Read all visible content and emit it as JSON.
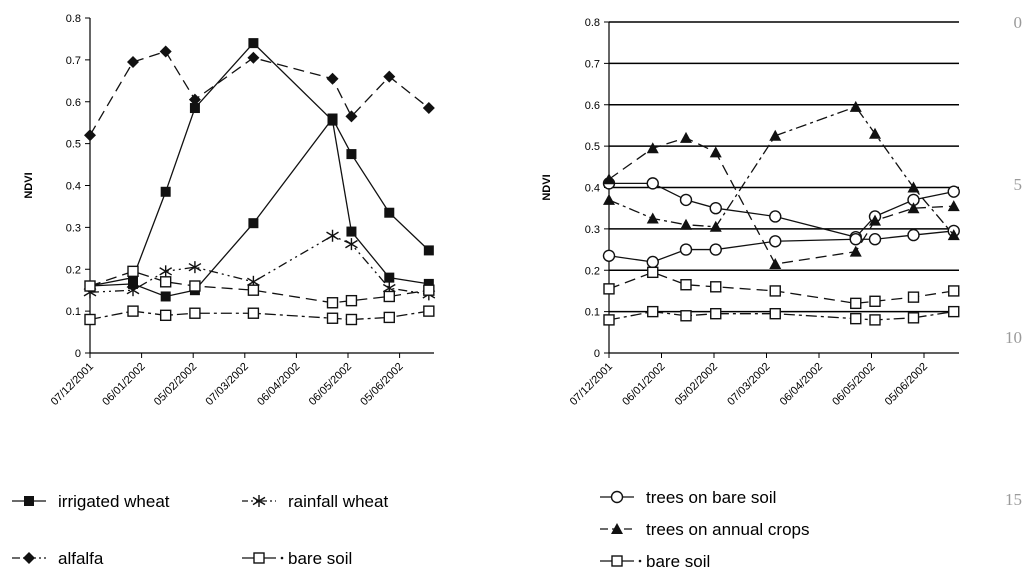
{
  "chart_data": [
    {
      "type": "line",
      "ylabel": "NDVI",
      "ylim": [
        0,
        0.8
      ],
      "yticks": [
        "0",
        "0.1",
        "0.2",
        "0.3",
        "0.4",
        "0.5",
        "0.6",
        "0.7",
        "0.8"
      ],
      "xlim": [
        "2001-12-07",
        "2002-06-25"
      ],
      "xticks": [
        "07/12/2001",
        "06/01/2002",
        "05/02/2002",
        "07/03/2002",
        "06/04/2002",
        "06/05/2002",
        "05/06/2002"
      ],
      "grid": false,
      "legend_placement": "bottom",
      "series": [
        {
          "name": "irrigated wheat",
          "marker": "filled-square",
          "dash": "solid",
          "points": [
            {
              "x": "2001-12-07",
              "y": 0.16
            },
            {
              "x": "2002-01-01",
              "y": 0.18
            },
            {
              "x": "2002-01-20",
              "y": 0.385
            },
            {
              "x": "2002-02-06",
              "y": 0.585
            },
            {
              "x": "2002-03-12",
              "y": 0.74
            },
            {
              "x": "2002-04-27",
              "y": 0.555
            },
            {
              "x": "2002-05-08",
              "y": 0.29
            },
            {
              "x": "2002-05-30",
              "y": 0.18
            },
            {
              "x": "2002-06-22",
              "y": 0.165
            }
          ]
        },
        {
          "name": "irrigated wheat",
          "marker": "filled-square",
          "dash": "solid",
          "points": [
            {
              "x": "2001-12-07",
              "y": 0.16
            },
            {
              "x": "2002-01-01",
              "y": 0.165
            },
            {
              "x": "2002-01-20",
              "y": 0.135
            },
            {
              "x": "2002-02-06",
              "y": 0.15
            },
            {
              "x": "2002-03-12",
              "y": 0.31
            },
            {
              "x": "2002-04-27",
              "y": 0.56
            },
            {
              "x": "2002-05-08",
              "y": 0.475
            },
            {
              "x": "2002-05-30",
              "y": 0.335
            },
            {
              "x": "2002-06-22",
              "y": 0.245
            }
          ]
        },
        {
          "name": "rainfall wheat",
          "marker": "asterisk",
          "dash": "dash-dot-dot",
          "points": [
            {
              "x": "2001-12-07",
              "y": 0.145
            },
            {
              "x": "2002-01-01",
              "y": 0.15
            },
            {
              "x": "2002-01-20",
              "y": 0.195
            },
            {
              "x": "2002-02-06",
              "y": 0.205
            },
            {
              "x": "2002-03-12",
              "y": 0.17
            },
            {
              "x": "2002-04-27",
              "y": 0.28
            },
            {
              "x": "2002-05-08",
              "y": 0.26
            },
            {
              "x": "2002-05-30",
              "y": 0.155
            },
            {
              "x": "2002-06-22",
              "y": 0.14
            }
          ]
        },
        {
          "name": "alfalfa",
          "marker": "filled-diamond",
          "dash": "long-dash",
          "points": [
            {
              "x": "2001-12-07",
              "y": 0.52
            },
            {
              "x": "2002-01-01",
              "y": 0.695
            },
            {
              "x": "2002-01-20",
              "y": 0.72
            },
            {
              "x": "2002-02-06",
              "y": 0.605
            },
            {
              "x": "2002-03-12",
              "y": 0.705
            },
            {
              "x": "2002-04-27",
              "y": 0.655
            },
            {
              "x": "2002-05-08",
              "y": 0.565
            },
            {
              "x": "2002-05-30",
              "y": 0.66
            },
            {
              "x": "2002-06-22",
              "y": 0.585
            }
          ]
        },
        {
          "name": "bare soil",
          "marker": "open-square",
          "dash": "dash-dot",
          "points": [
            {
              "x": "2001-12-07",
              "y": 0.08
            },
            {
              "x": "2002-01-01",
              "y": 0.1
            },
            {
              "x": "2002-01-20",
              "y": 0.09
            },
            {
              "x": "2002-02-06",
              "y": 0.095
            },
            {
              "x": "2002-03-12",
              "y": 0.095
            },
            {
              "x": "2002-04-27",
              "y": 0.083
            },
            {
              "x": "2002-05-08",
              "y": 0.08
            },
            {
              "x": "2002-05-30",
              "y": 0.085
            },
            {
              "x": "2002-06-22",
              "y": 0.1
            }
          ]
        },
        {
          "name": "bare soil",
          "marker": "open-square",
          "dash": "long-dash",
          "points": [
            {
              "x": "2001-12-07",
              "y": 0.16
            },
            {
              "x": "2002-01-01",
              "y": 0.195
            },
            {
              "x": "2002-01-20",
              "y": 0.17
            },
            {
              "x": "2002-02-06",
              "y": 0.16
            },
            {
              "x": "2002-03-12",
              "y": 0.15
            },
            {
              "x": "2002-04-27",
              "y": 0.12
            },
            {
              "x": "2002-05-08",
              "y": 0.125
            },
            {
              "x": "2002-05-30",
              "y": 0.135
            },
            {
              "x": "2002-06-22",
              "y": 0.15
            }
          ]
        }
      ],
      "legend": [
        {
          "label": "irrigated wheat",
          "marker": "filled-square",
          "dash": "solid",
          "col": 0,
          "row": 0
        },
        {
          "label": "rainfall wheat",
          "marker": "asterisk",
          "dash": "dash-dot-dot",
          "col": 1,
          "row": 0
        },
        {
          "label": "alfalfa",
          "marker": "filled-diamond",
          "dash": "dash-dot",
          "col": 0,
          "row": 1
        },
        {
          "label": "bare soil",
          "marker": "open-square",
          "dash": "solid-dot",
          "col": 1,
          "row": 1
        }
      ]
    },
    {
      "type": "line",
      "ylabel": "NDVI",
      "ylim": [
        0,
        0.8
      ],
      "yticks": [
        "0",
        "0.1",
        "0.2",
        "0.3",
        "0.4",
        "0.5",
        "0.6",
        "0.7",
        "0.8"
      ],
      "xlim": [
        "2001-12-07",
        "2002-06-25"
      ],
      "xticks": [
        "07/12/2001",
        "06/01/2002",
        "05/02/2002",
        "07/03/2002",
        "06/04/2002",
        "06/05/2002",
        "05/06/2002"
      ],
      "grid": true,
      "legend_placement": "bottom",
      "series": [
        {
          "name": "trees on bare soil",
          "marker": "open-circle",
          "dash": "solid",
          "points": [
            {
              "x": "2001-12-07",
              "y": 0.41
            },
            {
              "x": "2002-01-01",
              "y": 0.41
            },
            {
              "x": "2002-01-20",
              "y": 0.37
            },
            {
              "x": "2002-02-06",
              "y": 0.35
            },
            {
              "x": "2002-03-12",
              "y": 0.33
            },
            {
              "x": "2002-04-27",
              "y": 0.28
            },
            {
              "x": "2002-05-08",
              "y": 0.33
            },
            {
              "x": "2002-05-30",
              "y": 0.37
            },
            {
              "x": "2002-06-22",
              "y": 0.39
            }
          ]
        },
        {
          "name": "trees on bare soil",
          "marker": "open-circle",
          "dash": "solid",
          "points": [
            {
              "x": "2001-12-07",
              "y": 0.235
            },
            {
              "x": "2002-01-01",
              "y": 0.22
            },
            {
              "x": "2002-01-20",
              "y": 0.25
            },
            {
              "x": "2002-02-06",
              "y": 0.25
            },
            {
              "x": "2002-03-12",
              "y": 0.27
            },
            {
              "x": "2002-04-27",
              "y": 0.275
            },
            {
              "x": "2002-05-08",
              "y": 0.275
            },
            {
              "x": "2002-05-30",
              "y": 0.285
            },
            {
              "x": "2002-06-22",
              "y": 0.295
            }
          ]
        },
        {
          "name": "trees on annual crops",
          "marker": "filled-triangle",
          "dash": "long-dash",
          "points": [
            {
              "x": "2001-12-07",
              "y": 0.42
            },
            {
              "x": "2002-01-01",
              "y": 0.495
            },
            {
              "x": "2002-01-20",
              "y": 0.52
            },
            {
              "x": "2002-02-06",
              "y": 0.485
            },
            {
              "x": "2002-03-12",
              "y": 0.215
            },
            {
              "x": "2002-04-27",
              "y": 0.245
            },
            {
              "x": "2002-05-08",
              "y": 0.32
            },
            {
              "x": "2002-05-30",
              "y": 0.35
            },
            {
              "x": "2002-06-22",
              "y": 0.355
            }
          ]
        },
        {
          "name": "trees on annual crops",
          "marker": "filled-triangle",
          "dash": "dash-dot",
          "points": [
            {
              "x": "2001-12-07",
              "y": 0.37
            },
            {
              "x": "2002-01-01",
              "y": 0.325
            },
            {
              "x": "2002-01-20",
              "y": 0.31
            },
            {
              "x": "2002-02-06",
              "y": 0.305
            },
            {
              "x": "2002-03-12",
              "y": 0.525
            },
            {
              "x": "2002-04-27",
              "y": 0.595
            },
            {
              "x": "2002-05-08",
              "y": 0.53
            },
            {
              "x": "2002-05-30",
              "y": 0.4
            },
            {
              "x": "2002-06-22",
              "y": 0.285
            }
          ]
        },
        {
          "name": "bare soil",
          "marker": "open-square",
          "dash": "dash-dot",
          "points": [
            {
              "x": "2001-12-07",
              "y": 0.08
            },
            {
              "x": "2002-01-01",
              "y": 0.1
            },
            {
              "x": "2002-01-20",
              "y": 0.09
            },
            {
              "x": "2002-02-06",
              "y": 0.095
            },
            {
              "x": "2002-03-12",
              "y": 0.095
            },
            {
              "x": "2002-04-27",
              "y": 0.083
            },
            {
              "x": "2002-05-08",
              "y": 0.08
            },
            {
              "x": "2002-05-30",
              "y": 0.085
            },
            {
              "x": "2002-06-22",
              "y": 0.1
            }
          ]
        },
        {
          "name": "bare soil",
          "marker": "open-square",
          "dash": "long-dash",
          "points": [
            {
              "x": "2001-12-07",
              "y": 0.155
            },
            {
              "x": "2002-01-01",
              "y": 0.195
            },
            {
              "x": "2002-01-20",
              "y": 0.165
            },
            {
              "x": "2002-02-06",
              "y": 0.16
            },
            {
              "x": "2002-03-12",
              "y": 0.15
            },
            {
              "x": "2002-04-27",
              "y": 0.12
            },
            {
              "x": "2002-05-08",
              "y": 0.125
            },
            {
              "x": "2002-05-30",
              "y": 0.135
            },
            {
              "x": "2002-06-22",
              "y": 0.15
            }
          ]
        }
      ],
      "legend": [
        {
          "label": "trees on bare soil",
          "marker": "open-circle",
          "dash": "solid",
          "col": 0,
          "row": 0
        },
        {
          "label": "trees on annual crops",
          "marker": "filled-triangle",
          "dash": "long-dash",
          "col": 0,
          "row": 1
        },
        {
          "label": "bare soil",
          "marker": "open-square",
          "dash": "solid-dot",
          "col": 0,
          "row": 2
        }
      ]
    }
  ],
  "line_numbers": [
    "0",
    "5",
    "10",
    "15"
  ]
}
